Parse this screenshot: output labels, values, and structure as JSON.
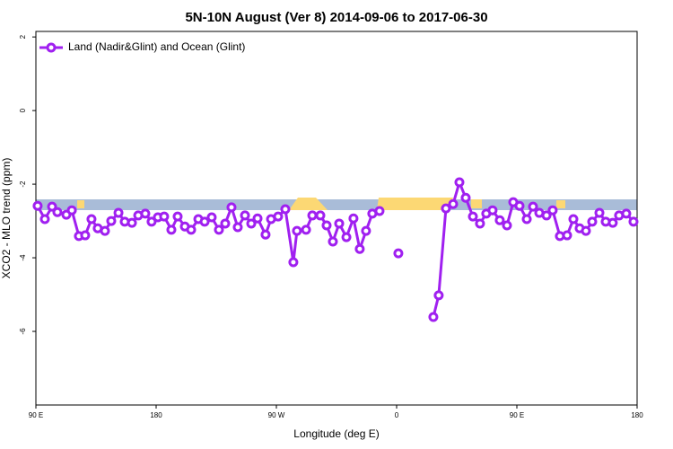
{
  "chart_data": {
    "type": "line",
    "title": "5N-10N August (Ver 8)   2014-09-06 to 2017-06-30",
    "x_label": "Longitude (deg E)",
    "y_label": "XCO2 - MLO trend (ppm)",
    "xlim": [
      90,
      540
    ],
    "ylim": [
      -8,
      2.15
    ],
    "xticks": [
      {
        "value": 90,
        "label": "90 E"
      },
      180,
      {
        "value": 270,
        "label": "90 W"
      },
      {
        "value": 360,
        "label": "0"
      },
      {
        "value": 450,
        "label": "90 E"
      },
      {
        "value": 540,
        "label": "180"
      }
    ],
    "yticks": [
      -6,
      -4,
      -2,
      0,
      2
    ],
    "legend": "top-left",
    "x": [
      91.3,
      96.7,
      102.1,
      106.1,
      112.8,
      116.9,
      122.2,
      126.9,
      131.6,
      136.3,
      141.7,
      146.4,
      151.8,
      156.5,
      161.9,
      166.6,
      171.9,
      176.6,
      181.3,
      186.0,
      191.4,
      196.1,
      201.5,
      206.2,
      211.6,
      216.3,
      221.6,
      227.0,
      231.7,
      236.4,
      241.1,
      246.5,
      251.2,
      255.9,
      261.9,
      266.0,
      271.3,
      276.7,
      282.7,
      285.4,
      292.2,
      296.9,
      302.9,
      307.6,
      312.3,
      317.0,
      322.4,
      327.7,
      332.4,
      337.1,
      341.8,
      347.2,
      352.0,
      361.3,
      370.0,
      387.5,
      391.5,
      396.9,
      402.3,
      407.0,
      411.7,
      417.1,
      422.4,
      427.1,
      431.8,
      437.2,
      442.6,
      447.3,
      452.0,
      457.4,
      462.1,
      466.8,
      472.2,
      476.8,
      482.2,
      487.6,
      492.3,
      497.0,
      501.7,
      506.4,
      511.8,
      516.5,
      521.8,
      526.5,
      531.9,
      537.3
    ],
    "series": [
      {
        "name": "Land (Nadir&Glint) and Ocean (Glint)",
        "color": "#a020f0",
        "values": [
          -2.59,
          -2.95,
          -2.61,
          -2.76,
          -2.83,
          -2.71,
          -3.41,
          -3.39,
          -2.95,
          -3.2,
          -3.27,
          -3.0,
          -2.78,
          -3.02,
          -3.05,
          -2.85,
          -2.8,
          -3.02,
          -2.9,
          -2.88,
          -3.24,
          -2.88,
          -3.15,
          -3.24,
          -2.95,
          -3.02,
          -2.9,
          -3.24,
          -3.07,
          -2.63,
          -3.17,
          -2.85,
          -3.07,
          -2.93,
          -3.37,
          -2.95,
          -2.88,
          -2.68,
          -4.12,
          -3.27,
          -3.24,
          -2.85,
          -2.85,
          -3.12,
          -3.56,
          -3.07,
          -3.44,
          -2.93,
          -3.76,
          -3.27,
          -2.8,
          -2.73,
          null,
          -3.88,
          null,
          -5.61,
          -5.02,
          -2.66,
          -2.54,
          -1.95,
          -2.37,
          -2.88,
          -3.07,
          -2.8,
          -2.71,
          -2.98,
          -3.12,
          -2.49,
          -2.59,
          -2.95,
          -2.61,
          -2.78,
          -2.85,
          -2.71,
          -3.41,
          -3.39,
          -2.95,
          -3.2,
          -3.27,
          -3.02,
          -2.78,
          -3.02,
          -3.05,
          -2.85,
          -2.8,
          -3.02
        ]
      }
    ]
  }
}
